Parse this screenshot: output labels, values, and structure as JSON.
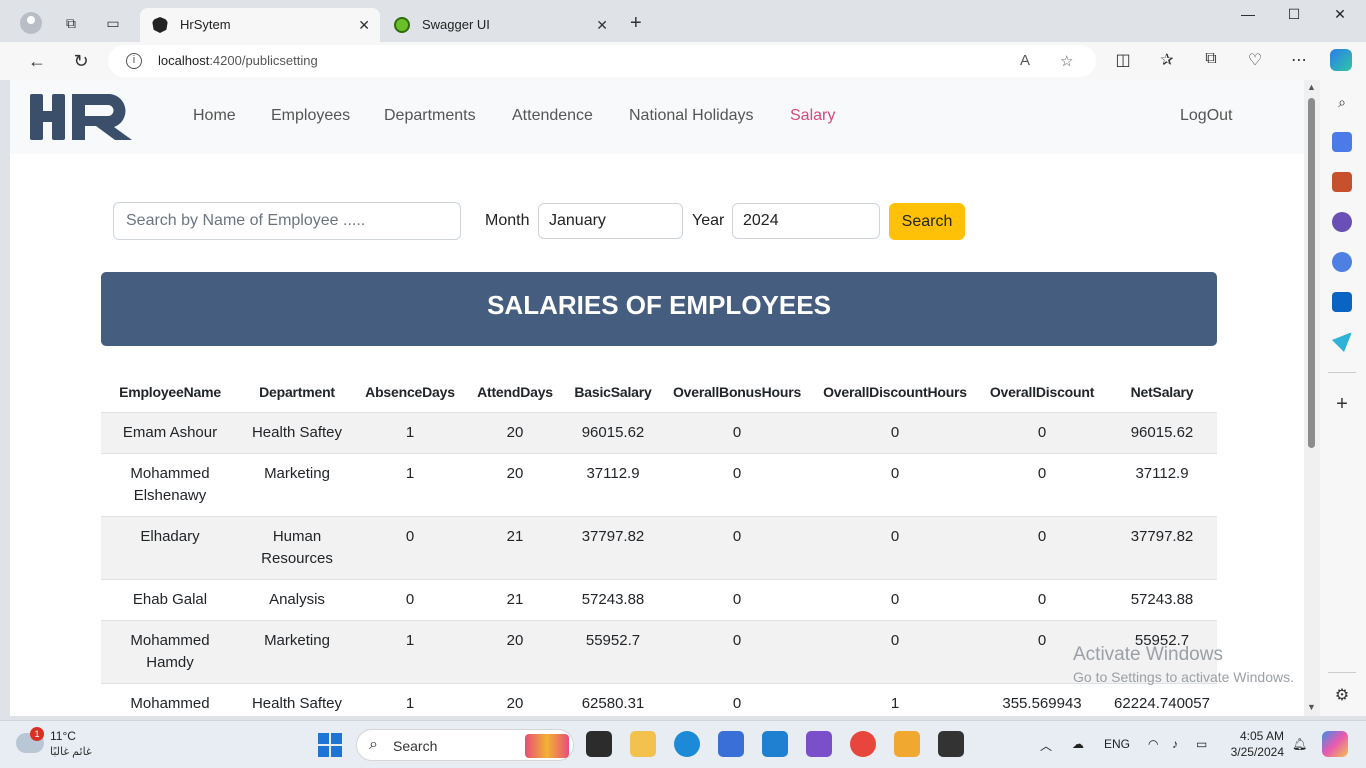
{
  "browser": {
    "tabs": [
      {
        "title": "HrSytem",
        "active": true
      },
      {
        "title": "Swagger UI",
        "active": false
      }
    ],
    "url_host": "localhost",
    "url_path": ":4200/publicsetting"
  },
  "nav": {
    "links": [
      "Home",
      "Employees",
      "Departments",
      "Attendence",
      "National Holidays",
      "Salary"
    ],
    "active": "Salary",
    "logout": "LogOut",
    "logo_text": "HR",
    "accent_color": "#d6497c"
  },
  "filters": {
    "search_placeholder": "Search by Name of Employee .....",
    "month_label": "Month",
    "month_value": "January",
    "year_label": "Year",
    "year_value": "2024",
    "search_button": "Search"
  },
  "title": "SALARIES OF EMPLOYEES",
  "table": {
    "columns": [
      "EmployeeName",
      "Department",
      "AbsenceDays",
      "AttendDays",
      "BasicSalary",
      "OverallBonusHours",
      "OverallDiscountHours",
      "OverallDiscount",
      "NetSalary"
    ],
    "rows": [
      [
        "Emam Ashour",
        "Health Saftey",
        "1",
        "20",
        "96015.62",
        "0",
        "0",
        "0",
        "96015.62"
      ],
      [
        "Mohammed Elshenawy",
        "Marketing",
        "1",
        "20",
        "37112.9",
        "0",
        "0",
        "0",
        "37112.9"
      ],
      [
        "Elhadary",
        "Human Resources",
        "0",
        "21",
        "37797.82",
        "0",
        "0",
        "0",
        "37797.82"
      ],
      [
        "Ehab Galal",
        "Analysis",
        "0",
        "21",
        "57243.88",
        "0",
        "0",
        "0",
        "57243.88"
      ],
      [
        "Mohammed Hamdy",
        "Marketing",
        "1",
        "20",
        "55952.7",
        "0",
        "0",
        "0",
        "55952.7"
      ],
      [
        "Mohammed",
        "Health Saftey",
        "1",
        "20",
        "62580.31",
        "0",
        "1",
        "355.569943",
        "62224.740057"
      ]
    ]
  },
  "activate_windows": {
    "title": "Activate Windows",
    "subtitle": "Go to Settings to activate Windows."
  },
  "taskbar": {
    "weather_temp": "11°C",
    "weather_desc": "غائم غالبًا",
    "weather_badge": "1",
    "search_label": "Search",
    "language": "ENG",
    "time": "4:05 AM",
    "date": "3/25/2024"
  }
}
